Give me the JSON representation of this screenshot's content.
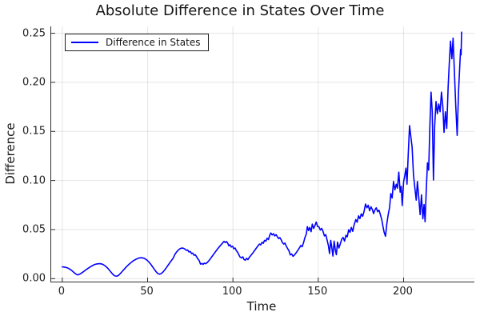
{
  "title": "Absolute Difference in States Over Time",
  "legend": {
    "label": "Difference in States",
    "position": "top-left"
  },
  "axes": {
    "xlabel": "Time",
    "ylabel": "Difference",
    "xtick_values": [
      0,
      50,
      100,
      150,
      200
    ],
    "xtick_labels": [
      "0",
      "50",
      "100",
      "150",
      "200"
    ],
    "ytick_values": [
      0.0,
      0.05,
      0.1,
      0.15,
      0.2,
      0.25
    ],
    "ytick_labels": [
      "0.00",
      "0.05",
      "0.10",
      "0.15",
      "0.20",
      "0.25"
    ]
  },
  "colors": {
    "line": "#0000ff",
    "grid": "rgba(0,0,0,0.10)",
    "axis": "#2e2e2e",
    "text": "#161616",
    "background": "#ffffff"
  },
  "chart_data": {
    "type": "line",
    "title": "Absolute Difference in States Over Time",
    "xlabel": "Time",
    "ylabel": "Difference",
    "xlim": [
      -6.5,
      241.5
    ],
    "ylim": [
      -0.003,
      0.257
    ],
    "grid": true,
    "legend_position": "top-left",
    "series": [
      {
        "name": "Difference in States",
        "color": "#0000ff",
        "points": [
          [
            0,
            0.012
          ],
          [
            1,
            0.0118
          ],
          [
            2,
            0.0115
          ],
          [
            3,
            0.011
          ],
          [
            4,
            0.0101
          ],
          [
            5,
            0.009
          ],
          [
            6,
            0.0076
          ],
          [
            7,
            0.006
          ],
          [
            8,
            0.0047
          ],
          [
            9,
            0.0038
          ],
          [
            10,
            0.0044
          ],
          [
            11,
            0.0054
          ],
          [
            12,
            0.0066
          ],
          [
            13,
            0.0079
          ],
          [
            14,
            0.0092
          ],
          [
            15,
            0.0104
          ],
          [
            16,
            0.0115
          ],
          [
            17,
            0.0126
          ],
          [
            18,
            0.0136
          ],
          [
            19,
            0.0144
          ],
          [
            20,
            0.0149
          ],
          [
            21,
            0.0152
          ],
          [
            22,
            0.0153
          ],
          [
            23,
            0.015
          ],
          [
            24,
            0.0143
          ],
          [
            25,
            0.0132
          ],
          [
            26,
            0.0117
          ],
          [
            27,
            0.0099
          ],
          [
            28,
            0.0078
          ],
          [
            29,
            0.0057
          ],
          [
            30,
            0.0038
          ],
          [
            31,
            0.0027
          ],
          [
            32,
            0.0025
          ],
          [
            33,
            0.0035
          ],
          [
            34,
            0.0052
          ],
          [
            35,
            0.0071
          ],
          [
            36,
            0.0091
          ],
          [
            37,
            0.011
          ],
          [
            38,
            0.0128
          ],
          [
            39,
            0.0145
          ],
          [
            40,
            0.016
          ],
          [
            41,
            0.0174
          ],
          [
            42,
            0.0186
          ],
          [
            43,
            0.0196
          ],
          [
            44,
            0.0204
          ],
          [
            45,
            0.021
          ],
          [
            46,
            0.0213
          ],
          [
            47,
            0.0212
          ],
          [
            48,
            0.0207
          ],
          [
            49,
            0.0197
          ],
          [
            50,
            0.0183
          ],
          [
            51,
            0.0165
          ],
          [
            52,
            0.0143
          ],
          [
            53,
            0.0119
          ],
          [
            54,
            0.0094
          ],
          [
            55,
            0.007
          ],
          [
            56,
            0.0052
          ],
          [
            57,
            0.0045
          ],
          [
            58,
            0.0052
          ],
          [
            59,
            0.0068
          ],
          [
            60,
            0.0088
          ],
          [
            61,
            0.0112
          ],
          [
            62,
            0.0137
          ],
          [
            63,
            0.0162
          ],
          [
            64,
            0.0186
          ],
          [
            65,
            0.0209
          ],
          [
            66,
            0.0248
          ],
          [
            67,
            0.0272
          ],
          [
            68,
            0.0292
          ],
          [
            69,
            0.0305
          ],
          [
            70,
            0.0312
          ],
          [
            71,
            0.031
          ],
          [
            72,
            0.03
          ],
          [
            72.8,
            0.0288
          ],
          [
            73.5,
            0.0292
          ],
          [
            74.2,
            0.0272
          ],
          [
            75,
            0.0277
          ],
          [
            75.8,
            0.0255
          ],
          [
            76.5,
            0.026
          ],
          [
            77.2,
            0.0238
          ],
          [
            78,
            0.0243
          ],
          [
            78.8,
            0.022
          ],
          [
            79.5,
            0.02
          ],
          [
            80.2,
            0.0185
          ],
          [
            81,
            0.0148
          ],
          [
            81.8,
            0.0155
          ],
          [
            82.5,
            0.0145
          ],
          [
            83.2,
            0.0158
          ],
          [
            84,
            0.0152
          ],
          [
            85,
            0.0165
          ],
          [
            86,
            0.0185
          ],
          [
            87,
            0.0208
          ],
          [
            88,
            0.0232
          ],
          [
            89,
            0.0256
          ],
          [
            90,
            0.028
          ],
          [
            91,
            0.0303
          ],
          [
            92,
            0.0324
          ],
          [
            93,
            0.0345
          ],
          [
            94,
            0.0365
          ],
          [
            94.8,
            0.038
          ],
          [
            95.5,
            0.0368
          ],
          [
            96.3,
            0.0378
          ],
          [
            97,
            0.036
          ],
          [
            97.6,
            0.0335
          ],
          [
            98.3,
            0.0345
          ],
          [
            99,
            0.0322
          ],
          [
            99.8,
            0.033
          ],
          [
            100.5,
            0.0305
          ],
          [
            101.3,
            0.0312
          ],
          [
            102,
            0.0285
          ],
          [
            102.8,
            0.0268
          ],
          [
            103.5,
            0.0242
          ],
          [
            104.2,
            0.022
          ],
          [
            105,
            0.0212
          ],
          [
            105.8,
            0.0222
          ],
          [
            106.5,
            0.0195
          ],
          [
            107.3,
            0.0188
          ],
          [
            108,
            0.0208
          ],
          [
            108.8,
            0.0194
          ],
          [
            109.5,
            0.0215
          ],
          [
            110.5,
            0.0236
          ],
          [
            111.5,
            0.0258
          ],
          [
            112.5,
            0.0282
          ],
          [
            113.5,
            0.0306
          ],
          [
            114.5,
            0.033
          ],
          [
            115.5,
            0.0352
          ],
          [
            116.3,
            0.0344
          ],
          [
            117,
            0.037
          ],
          [
            117.8,
            0.036
          ],
          [
            118.5,
            0.039
          ],
          [
            119.3,
            0.0382
          ],
          [
            120,
            0.0412
          ],
          [
            120.8,
            0.0398
          ],
          [
            121.5,
            0.044
          ],
          [
            122.2,
            0.0465
          ],
          [
            123,
            0.0445
          ],
          [
            123.8,
            0.0458
          ],
          [
            124.5,
            0.0435
          ],
          [
            125.3,
            0.0448
          ],
          [
            126,
            0.0428
          ],
          [
            126.8,
            0.0408
          ],
          [
            127.5,
            0.0418
          ],
          [
            128.3,
            0.0395
          ],
          [
            129,
            0.0368
          ],
          [
            129.8,
            0.0352
          ],
          [
            130.5,
            0.0362
          ],
          [
            131.3,
            0.033
          ],
          [
            132,
            0.0308
          ],
          [
            132.8,
            0.0285
          ],
          [
            133.6,
            0.0242
          ],
          [
            134.4,
            0.0252
          ],
          [
            135.2,
            0.0228
          ],
          [
            136,
            0.024
          ],
          [
            137,
            0.0262
          ],
          [
            138,
            0.0288
          ],
          [
            139,
            0.0315
          ],
          [
            139.8,
            0.0338
          ],
          [
            140.6,
            0.0325
          ],
          [
            141.4,
            0.0368
          ],
          [
            142.2,
            0.042
          ],
          [
            143,
            0.0455
          ],
          [
            143.6,
            0.053
          ],
          [
            144.3,
            0.049
          ],
          [
            145,
            0.0522
          ],
          [
            145.8,
            0.0478
          ],
          [
            146.5,
            0.0555
          ],
          [
            147.3,
            0.0512
          ],
          [
            148,
            0.0538
          ],
          [
            148.8,
            0.0577
          ],
          [
            149.6,
            0.0532
          ],
          [
            150.4,
            0.0528
          ],
          [
            151.2,
            0.0496
          ],
          [
            152,
            0.0512
          ],
          [
            152.8,
            0.0482
          ],
          [
            153.6,
            0.0435
          ],
          [
            154.4,
            0.0448
          ],
          [
            155.2,
            0.0392
          ],
          [
            156,
            0.0332
          ],
          [
            156.6,
            0.0256
          ],
          [
            157.3,
            0.039
          ],
          [
            158,
            0.031
          ],
          [
            158.6,
            0.023
          ],
          [
            159.3,
            0.0382
          ],
          [
            160,
            0.0292
          ],
          [
            160.6,
            0.0244
          ],
          [
            161.3,
            0.0372
          ],
          [
            162.1,
            0.0312
          ],
          [
            163,
            0.0358
          ],
          [
            163.8,
            0.0405
          ],
          [
            164.6,
            0.042
          ],
          [
            165.4,
            0.0382
          ],
          [
            166.2,
            0.0442
          ],
          [
            167,
            0.0426
          ],
          [
            167.8,
            0.0498
          ],
          [
            168.6,
            0.0472
          ],
          [
            169.4,
            0.0522
          ],
          [
            170.2,
            0.0482
          ],
          [
            171,
            0.0548
          ],
          [
            172,
            0.0602
          ],
          [
            172.8,
            0.0575
          ],
          [
            173.6,
            0.064
          ],
          [
            174.4,
            0.0612
          ],
          [
            175.2,
            0.066
          ],
          [
            176,
            0.0635
          ],
          [
            176.8,
            0.0682
          ],
          [
            177.7,
            0.076
          ],
          [
            178.5,
            0.0722
          ],
          [
            179.3,
            0.0748
          ],
          [
            180.1,
            0.0692
          ],
          [
            180.9,
            0.0732
          ],
          [
            181.7,
            0.0705
          ],
          [
            182.4,
            0.0663
          ],
          [
            183.2,
            0.07
          ],
          [
            184,
            0.0722
          ],
          [
            184.8,
            0.0682
          ],
          [
            185.6,
            0.0698
          ],
          [
            186.4,
            0.0652
          ],
          [
            187.2,
            0.0602
          ],
          [
            188,
            0.0525
          ],
          [
            188.6,
            0.0473
          ],
          [
            189.4,
            0.0432
          ],
          [
            190.2,
            0.0562
          ],
          [
            191,
            0.0655
          ],
          [
            191.8,
            0.0725
          ],
          [
            192.5,
            0.0867
          ],
          [
            193.3,
            0.0822
          ],
          [
            194.1,
            0.099
          ],
          [
            194.9,
            0.0905
          ],
          [
            195.7,
            0.0962
          ],
          [
            196.4,
            0.0922
          ],
          [
            197.2,
            0.1085
          ],
          [
            198,
            0.0881
          ],
          [
            198.6,
            0.094
          ],
          [
            199.2,
            0.0745
          ],
          [
            200,
            0.0985
          ],
          [
            200.7,
            0.105
          ],
          [
            201.4,
            0.1126
          ],
          [
            202,
            0.0963
          ],
          [
            202.7,
            0.1255
          ],
          [
            203.5,
            0.156
          ],
          [
            204.2,
            0.1455
          ],
          [
            205,
            0.134
          ],
          [
            205.8,
            0.1058
          ],
          [
            206.6,
            0.0925
          ],
          [
            207.4,
            0.08
          ],
          [
            208.1,
            0.099
          ],
          [
            208.9,
            0.0825
          ],
          [
            209.7,
            0.0652
          ],
          [
            210.5,
            0.0854
          ],
          [
            211.3,
            0.061
          ],
          [
            212,
            0.0755
          ],
          [
            212.6,
            0.058
          ],
          [
            213.3,
            0.0905
          ],
          [
            214,
            0.118
          ],
          [
            214.7,
            0.1105
          ],
          [
            215.4,
            0.155
          ],
          [
            216.1,
            0.19
          ],
          [
            216.8,
            0.17
          ],
          [
            217.5,
            0.1005
          ],
          [
            218.2,
            0.155
          ],
          [
            219,
            0.1805
          ],
          [
            219.8,
            0.168
          ],
          [
            220.6,
            0.178
          ],
          [
            221.4,
            0.17
          ],
          [
            222.2,
            0.19
          ],
          [
            223,
            0.1755
          ],
          [
            223.7,
            0.149
          ],
          [
            224.5,
            0.17
          ],
          [
            225.3,
            0.153
          ],
          [
            226.1,
            0.195
          ],
          [
            226.8,
            0.22
          ],
          [
            227.5,
            0.242
          ],
          [
            228.3,
            0.224
          ],
          [
            229,
            0.245
          ],
          [
            229.8,
            0.21
          ],
          [
            230.6,
            0.175
          ],
          [
            231.4,
            0.146
          ],
          [
            232.2,
            0.1905
          ],
          [
            232.9,
            0.216
          ],
          [
            233.4,
            0.2335
          ],
          [
            233.7,
            0.228
          ],
          [
            234,
            0.2512
          ]
        ]
      }
    ]
  }
}
